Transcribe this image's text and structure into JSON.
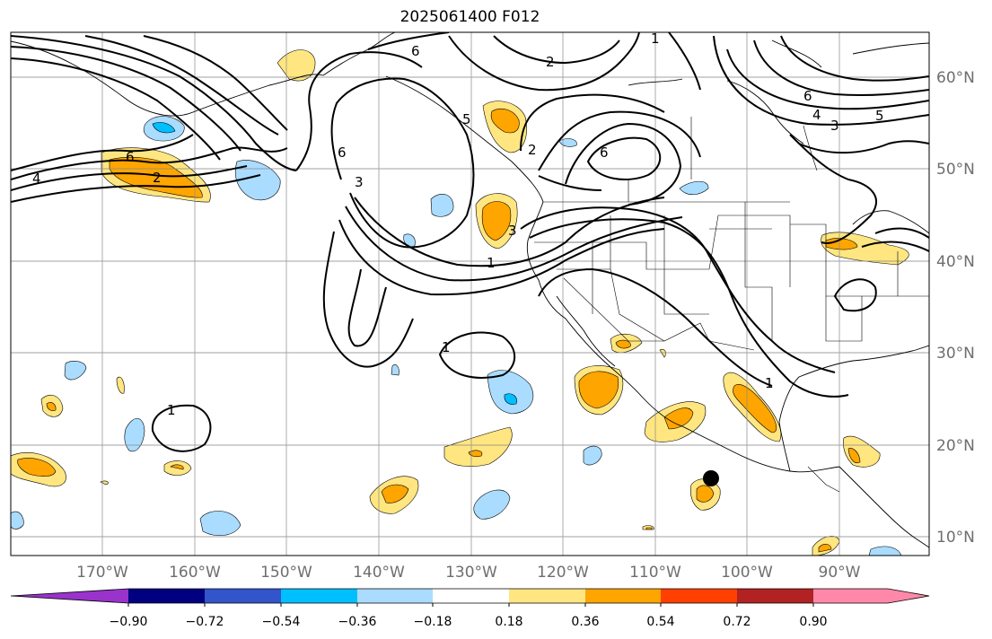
{
  "title": "2025061400 F012",
  "map": {
    "lat_labels": [
      "60°N",
      "50°N",
      "40°N",
      "30°N",
      "20°N",
      "10°N"
    ],
    "lon_labels": [
      "170°W",
      "160°W",
      "150°W",
      "140°W",
      "130°W",
      "120°W",
      "110°W",
      "100°W",
      "90°W"
    ],
    "extent": {
      "lon_min": -180,
      "lon_max": -80.5,
      "lat_min": 8,
      "lat_max": 65
    }
  },
  "contours": {
    "color": "#000000",
    "labels": [
      "6",
      "2",
      "4",
      "6",
      "2",
      "5",
      "6",
      "3",
      "1",
      "1",
      "1",
      "2",
      "6",
      "3",
      "6",
      "4",
      "3",
      "5",
      "1",
      "1"
    ]
  },
  "colorbar": {
    "ticks": [
      "−0.90",
      "−0.72",
      "−0.54",
      "−0.36",
      "−0.18",
      "0.18",
      "0.36",
      "0.54",
      "0.72",
      "0.90"
    ],
    "colors": [
      "#9933cc",
      "#000080",
      "#3355cc",
      "#00bfff",
      "#aadcff",
      "#ffffff",
      "#ffe680",
      "#ffa500",
      "#ff4000",
      "#b22222",
      "#ff88aa",
      "#ff88aa"
    ]
  },
  "marker": {
    "label": "",
    "color": "#000000"
  }
}
